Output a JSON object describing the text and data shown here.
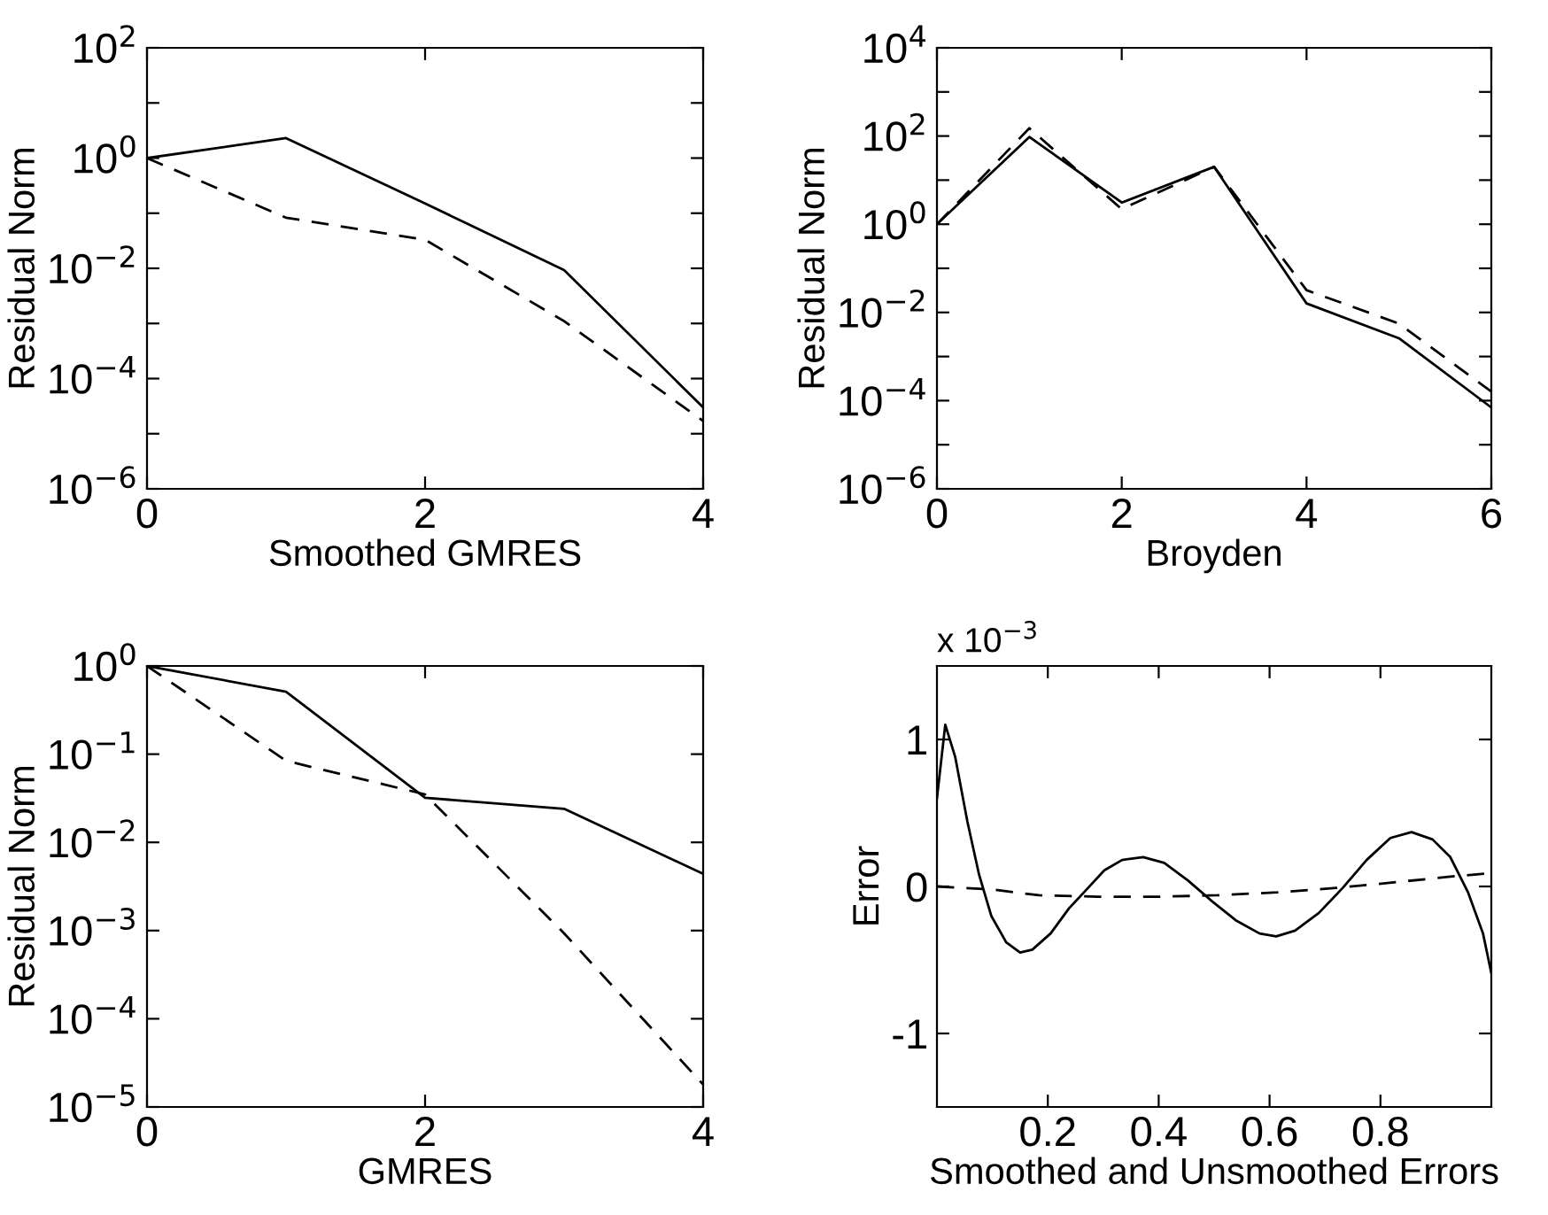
{
  "chart_data": [
    {
      "type": "line",
      "xlabel": "Smoothed GMRES",
      "ylabel": "Residual Norm",
      "log": "y",
      "xlim": [
        0,
        4
      ],
      "xticks": [
        0,
        2,
        4
      ],
      "ylim": [
        1e-06,
        100
      ],
      "yticks": [
        {
          "value": 1e-06,
          "label": "10$^{−6}$"
        },
        {
          "value": 1e-05,
          "label": null
        },
        {
          "value": 0.0001,
          "label": "10$^{−4}$"
        },
        {
          "value": 0.001,
          "label": null
        },
        {
          "value": 0.01,
          "label": "10$^{−2}$"
        },
        {
          "value": 0.1,
          "label": null
        },
        {
          "value": 1,
          "label": "10$^{0}$"
        },
        {
          "value": 10,
          "label": null
        },
        {
          "value": 100,
          "label": "10$^{2}$"
        }
      ],
      "x": [
        0,
        1,
        2,
        3,
        4
      ],
      "series": [
        {
          "color": "#000000",
          "line_style": "solid",
          "values": [
            1,
            2.3,
            0.15,
            0.0093,
            3e-05
          ]
        },
        {
          "color": "#000000",
          "line_style": "dashed",
          "values": [
            1,
            0.083,
            0.033,
            0.0011,
            1.7e-05
          ]
        }
      ]
    },
    {
      "type": "line",
      "xlabel": "Broyden",
      "ylabel": "Residual Norm",
      "log": "y",
      "xlim": [
        0,
        6
      ],
      "xticks": [
        0,
        2,
        4,
        6
      ],
      "ylim": [
        1e-06,
        10000
      ],
      "yticks": [
        {
          "value": 1e-06,
          "label": "10$^{−6}$"
        },
        {
          "value": 1e-05,
          "label": null
        },
        {
          "value": 0.0001,
          "label": "10$^{−4}$"
        },
        {
          "value": 0.001,
          "label": null
        },
        {
          "value": 0.01,
          "label": "10$^{−2}$"
        },
        {
          "value": 0.1,
          "label": null
        },
        {
          "value": 1,
          "label": "10$^{0}$"
        },
        {
          "value": 10,
          "label": null
        },
        {
          "value": 100,
          "label": "10$^{2}$"
        },
        {
          "value": 1000,
          "label": null
        },
        {
          "value": 10000,
          "label": "10$^{4}$"
        }
      ],
      "x": [
        0,
        1,
        2,
        3,
        4,
        5,
        6
      ],
      "series": [
        {
          "color": "#000000",
          "line_style": "solid",
          "values": [
            1,
            95,
            3.1,
            20,
            0.016,
            0.0026,
            7e-05
          ]
        },
        {
          "color": "#000000",
          "line_style": "dashed",
          "values": [
            1,
            150,
            2.2,
            20,
            0.032,
            0.0056,
            0.00016
          ]
        }
      ]
    },
    {
      "type": "line",
      "xlabel": "GMRES",
      "ylabel": "Residual Norm",
      "log": "y",
      "xlim": [
        0,
        4
      ],
      "xticks": [
        0,
        2,
        4
      ],
      "ylim": [
        1e-05,
        1
      ],
      "yticks": [
        {
          "value": 1e-05,
          "label": "10$^{−5}$"
        },
        {
          "value": 0.0001,
          "label": "10$^{−4}$"
        },
        {
          "value": 0.001,
          "label": "10$^{−3}$"
        },
        {
          "value": 0.01,
          "label": "10$^{−2}$"
        },
        {
          "value": 0.1,
          "label": "10$^{−1}$"
        },
        {
          "value": 1,
          "label": "10$^{0}$"
        }
      ],
      "x": [
        0,
        1,
        2,
        3,
        4
      ],
      "series": [
        {
          "color": "#000000",
          "line_style": "solid",
          "values": [
            1,
            0.51,
            0.032,
            0.024,
            0.0044
          ]
        },
        {
          "color": "#000000",
          "line_style": "dashed",
          "values": [
            1,
            0.084,
            0.035,
            0.00093,
            1.8e-05
          ]
        }
      ]
    },
    {
      "type": "line",
      "xlabel": "Smoothed and Unsmoothed Errors",
      "ylabel": "Error",
      "annotations": [
        "x 10$^{−3}$"
      ],
      "xlim": [
        0,
        1
      ],
      "xticks": [
        0.2,
        0.4,
        0.6,
        0.8
      ],
      "ylim": [
        -1.5,
        1.5
      ],
      "yticks": [
        -1,
        0,
        1
      ],
      "series": [
        {
          "color": "#000000",
          "line_style": "solid",
          "x": [
            0,
            0.015,
            0.033,
            0.055,
            0.076,
            0.098,
            0.125,
            0.15,
            0.172,
            0.205,
            0.238,
            0.27,
            0.302,
            0.334,
            0.372,
            0.41,
            0.453,
            0.496,
            0.539,
            0.582,
            0.612,
            0.646,
            0.689,
            0.732,
            0.775,
            0.818,
            0.856,
            0.894,
            0.926,
            0.958,
            0.985,
            1.0
          ],
          "values": [
            0.6,
            1.1,
            0.88,
            0.44,
            0.08,
            -0.2,
            -0.38,
            -0.45,
            -0.43,
            -0.32,
            -0.15,
            -0.02,
            0.11,
            0.18,
            0.2,
            0.16,
            0.04,
            -0.1,
            -0.23,
            -0.32,
            -0.34,
            -0.3,
            -0.18,
            -0.01,
            0.18,
            0.33,
            0.37,
            0.32,
            0.2,
            -0.04,
            -0.32,
            -0.59
          ]
        },
        {
          "color": "#000000",
          "line_style": "dashed",
          "x": [
            0,
            0.098,
            0.184,
            0.29,
            0.4,
            0.506,
            0.614,
            0.72,
            0.83,
            0.935,
            1.0
          ],
          "values": [
            0,
            -0.02,
            -0.06,
            -0.07,
            -0.07,
            -0.06,
            -0.04,
            -0.01,
            0.03,
            0.07,
            0.09
          ]
        }
      ]
    }
  ]
}
